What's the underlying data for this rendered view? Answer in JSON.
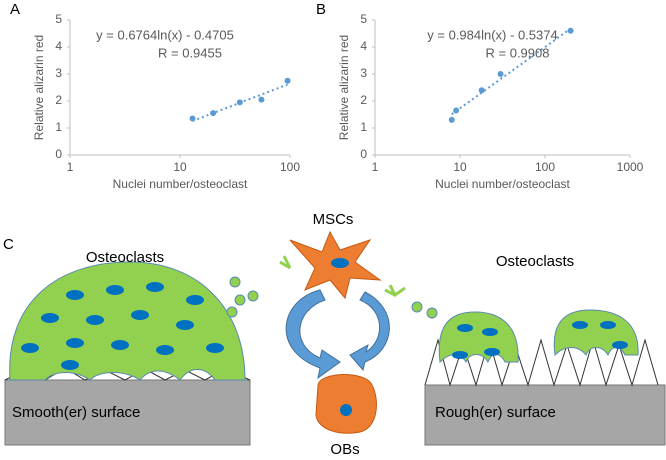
{
  "chart_data": [
    {
      "type": "scatter",
      "panel": "A",
      "xlabel": "Nuclei number/osteoclast",
      "ylabel": "Relative alizarin red",
      "x": [
        13,
        20,
        35,
        55,
        95
      ],
      "values": [
        1.35,
        1.55,
        1.95,
        2.05,
        2.75
      ],
      "color": "#5b9bd5",
      "xscale": "log",
      "xlim": [
        1,
        100
      ],
      "xticks": [
        1,
        10,
        100
      ],
      "ylim": [
        0,
        5
      ],
      "yticks": [
        0,
        1,
        2,
        3,
        4,
        5
      ],
      "grid": false,
      "trendline": {
        "x": [
          13,
          95
        ],
        "values": [
          1.26,
          2.61
        ]
      },
      "annotations": [
        "y = 0.6764ln(x) - 0.4705",
        "R = 0.9455"
      ]
    },
    {
      "type": "scatter",
      "panel": "B",
      "xlabel": "Nuclei number/osteoclast",
      "ylabel": "Relative alizarin red",
      "x": [
        8,
        9,
        18,
        30,
        200
      ],
      "values": [
        1.3,
        1.65,
        2.4,
        3.0,
        4.6
      ],
      "color": "#5b9bd5",
      "xscale": "log",
      "xlim": [
        1,
        1000
      ],
      "xticks": [
        1,
        10,
        100,
        1000
      ],
      "ylim": [
        0,
        5
      ],
      "yticks": [
        0,
        1,
        2,
        3,
        4,
        5
      ],
      "grid": false,
      "trendline": {
        "x": [
          8,
          200
        ],
        "values": [
          1.51,
          4.68
        ]
      },
      "annotations": [
        "y = 0.984ln(x) - 0.5374",
        "R = 0.9908"
      ]
    }
  ],
  "diagram": {
    "panel": "C",
    "labels": [
      "Osteoclasts",
      "MSCs",
      "Osteoclasts",
      "Smooth(er) surface",
      "Rough(er) surface",
      "OBs"
    ]
  }
}
